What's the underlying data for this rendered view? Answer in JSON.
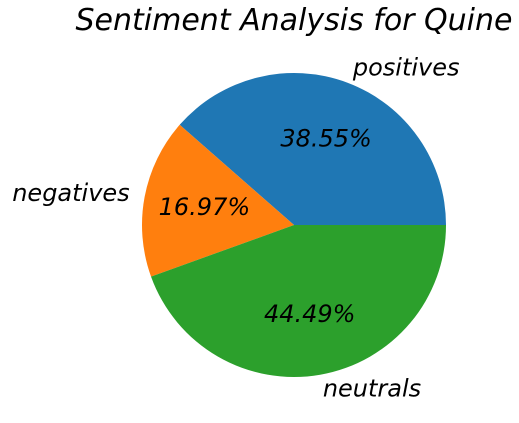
{
  "chart_data": {
    "type": "pie",
    "title": "Sentiment Analysis for Quine",
    "slices": [
      {
        "label": "positives",
        "value": 38.55,
        "pct_label": "38.55%",
        "color": "#1f77b4"
      },
      {
        "label": "negatives",
        "value": 16.97,
        "pct_label": "16.97%",
        "color": "#ff7f0e"
      },
      {
        "label": "neutrals",
        "value": 44.49,
        "pct_label": "44.49%",
        "color": "#2ca02c"
      }
    ],
    "start_angle_deg": 0,
    "direction": "counterclockwise"
  }
}
